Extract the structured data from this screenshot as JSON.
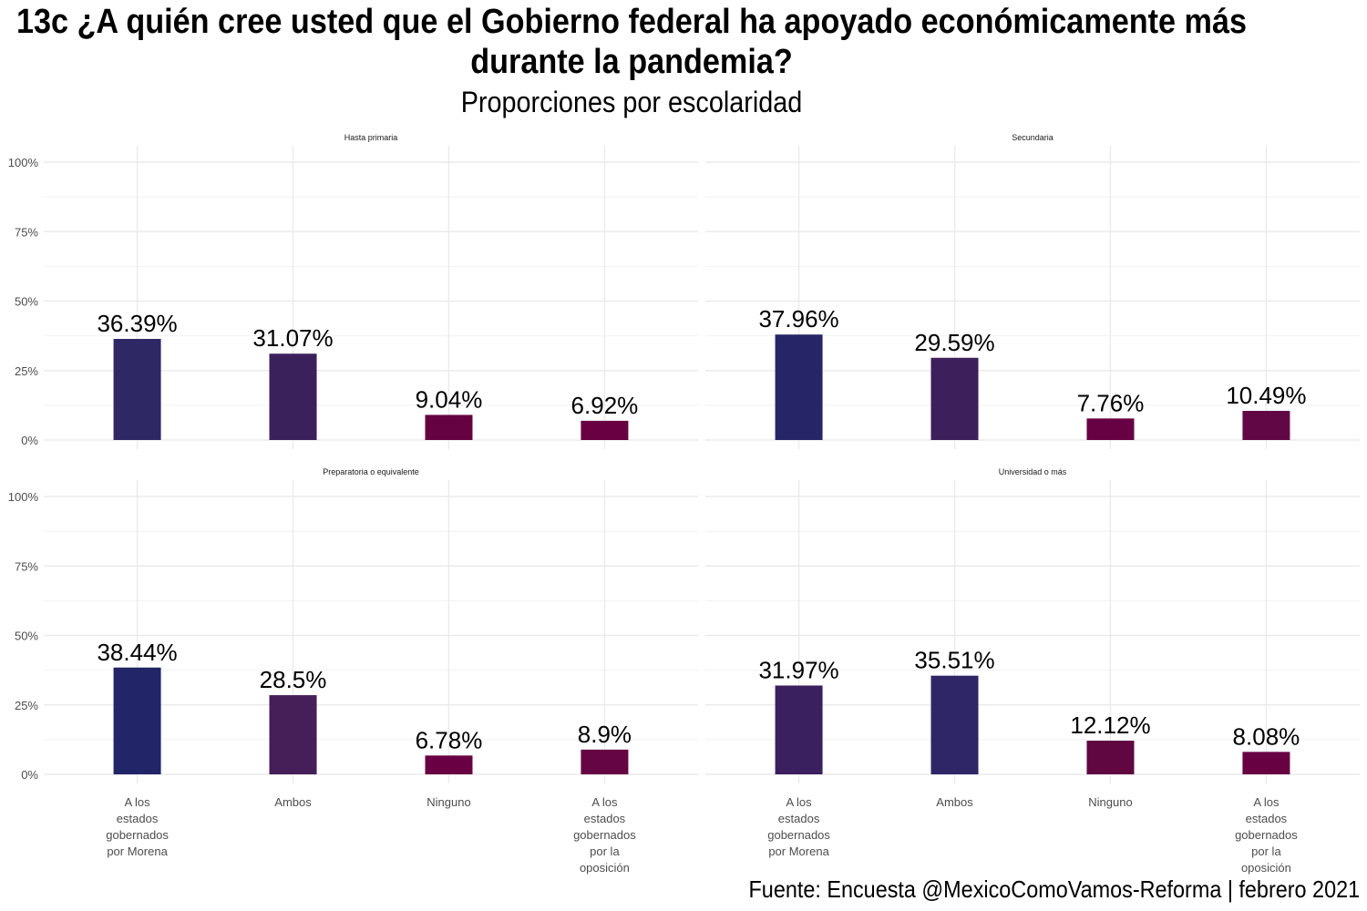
{
  "title": "13c ¿A quién cree usted que el Gobierno federal ha apoyado económicamente más durante la pandemia?",
  "subtitle": "Proporciones por escolaridad",
  "caption": "Fuente: Encuesta @MexicoComoVamos-Reforma | febrero 2021",
  "chart_data": {
    "type": "bar",
    "facet_by": "escolaridad",
    "categories": [
      [
        "A los",
        "estados",
        "gobernados",
        "por Morena"
      ],
      [
        "Ambos"
      ],
      [
        "Ninguno"
      ],
      [
        "A los",
        "estados",
        "gobernados",
        "por la",
        "oposición"
      ]
    ],
    "ylim": [
      0,
      100
    ],
    "y_ticks": [
      "0%",
      "25%",
      "50%",
      "75%",
      "100%"
    ],
    "grid": true,
    "legend": "none",
    "panels": [
      {
        "name": "Hasta primaria",
        "values": [
          36.39,
          31.07,
          9.04,
          6.92
        ],
        "labels": [
          "36.39%",
          "31.07%",
          "9.04%",
          "6.92%"
        ],
        "colors": [
          "#2e2865",
          "#3a215c",
          "#650342",
          "#680042"
        ]
      },
      {
        "name": "Secundaria",
        "values": [
          37.96,
          29.59,
          7.76,
          10.49
        ],
        "labels": [
          "37.96%",
          "29.59%",
          "7.76%",
          "10.49%"
        ],
        "colors": [
          "#262567",
          "#3d1f5b",
          "#670143",
          "#620746"
        ]
      },
      {
        "name": "Preparatoria o equivalente",
        "values": [
          38.44,
          28.5,
          6.78,
          8.9
        ],
        "labels": [
          "38.44%",
          "28.5%",
          "6.78%",
          "8.9%"
        ],
        "colors": [
          "#222568",
          "#461e58",
          "#690043",
          "#650544"
        ]
      },
      {
        "name": "Universidad o más",
        "values": [
          31.97,
          35.51,
          12.12,
          8.08
        ],
        "labels": [
          "31.97%",
          "35.51%",
          "12.12%",
          "8.08%"
        ],
        "colors": [
          "#3b2060",
          "#2e2666",
          "#600742",
          "#670142"
        ]
      }
    ]
  }
}
